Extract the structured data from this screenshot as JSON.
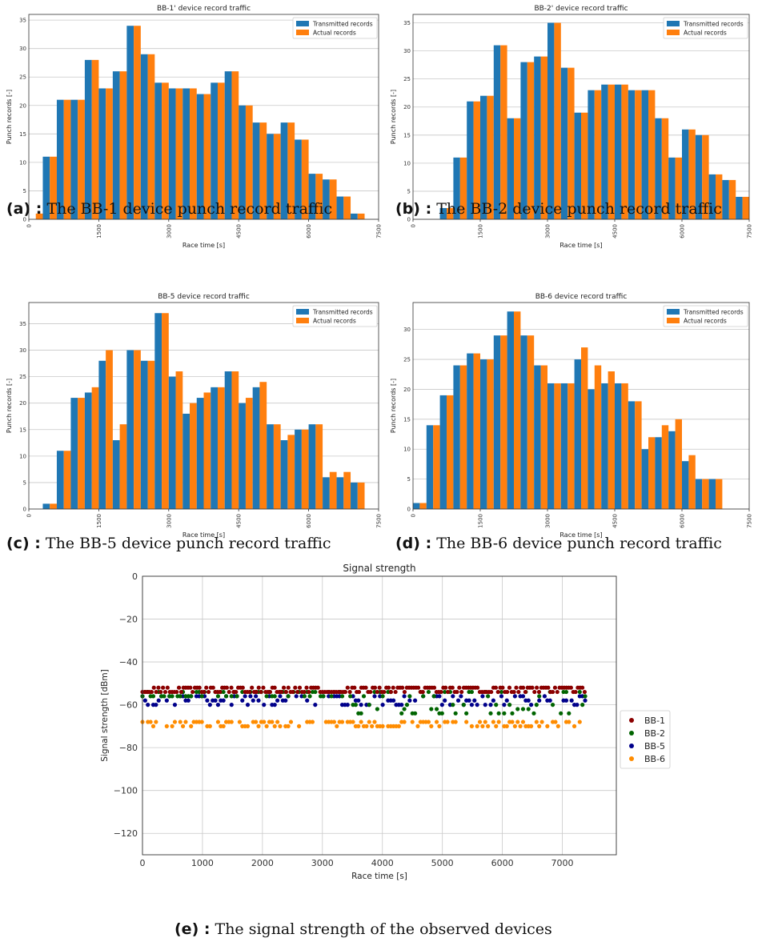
{
  "colors": {
    "transmitted": "#1f77b4",
    "actual": "#ff7f0e",
    "BB-1": "#8b0000",
    "BB-2": "#006400",
    "BB-5": "#00008b",
    "BB-6": "#ff8c00"
  },
  "chart_data": [
    {
      "id": "a",
      "type": "bar",
      "title": "BB-1' device record traffic",
      "xlabel": "Race time [s]",
      "ylabel": "Punch records [-]",
      "xticks": [
        0,
        1500,
        3000,
        4500,
        6000,
        7500
      ],
      "yticks": [
        0,
        5,
        10,
        15,
        20,
        25,
        30,
        35
      ],
      "xlim": [
        0,
        7500
      ],
      "ylim": [
        0,
        36
      ],
      "bin_width": 300,
      "grid": "y",
      "legend": "top-right",
      "bin_starts": [
        0,
        300,
        600,
        900,
        1200,
        1500,
        1800,
        2100,
        2400,
        2700,
        3000,
        3300,
        3600,
        3900,
        4200,
        4500,
        4800,
        5100,
        5400,
        5700,
        6000,
        6300,
        6600,
        6900
      ],
      "series": [
        {
          "name": "Transmitted records",
          "values": [
            0,
            11,
            21,
            21,
            28,
            23,
            26,
            34,
            29,
            24,
            23,
            23,
            22,
            24,
            26,
            20,
            17,
            15,
            17,
            14,
            8,
            7,
            4,
            1
          ]
        },
        {
          "name": "Actual records",
          "values": [
            1,
            11,
            21,
            21,
            28,
            23,
            26,
            34,
            29,
            24,
            23,
            23,
            22,
            24,
            26,
            20,
            17,
            15,
            17,
            14,
            8,
            7,
            4,
            1
          ]
        }
      ]
    },
    {
      "id": "b",
      "type": "bar",
      "title": "BB-2' device record traffic",
      "xlabel": "Race time [s]",
      "ylabel": "Punch records [-]",
      "xticks": [
        0,
        1500,
        3000,
        4500,
        6000,
        7500
      ],
      "yticks": [
        0,
        5,
        10,
        15,
        20,
        25,
        30,
        35
      ],
      "xlim": [
        0,
        7500
      ],
      "ylim": [
        0,
        36.5
      ],
      "bin_width": 300,
      "grid": "y",
      "legend": "top-right",
      "bin_starts": [
        0,
        300,
        600,
        900,
        1200,
        1500,
        1800,
        2100,
        2400,
        2700,
        3000,
        3300,
        3600,
        3900,
        4200,
        4500,
        4800,
        5100,
        5400,
        5700,
        6000,
        6300,
        6600,
        6900,
        7200
      ],
      "series": [
        {
          "name": "Transmitted records",
          "values": [
            0,
            0,
            2,
            11,
            21,
            22,
            31,
            18,
            28,
            29,
            35,
            27,
            19,
            23,
            24,
            24,
            23,
            23,
            18,
            11,
            16,
            15,
            8,
            7,
            4
          ]
        },
        {
          "name": "Actual records",
          "values": [
            0,
            0,
            2,
            11,
            21,
            22,
            31,
            18,
            28,
            29,
            35,
            27,
            19,
            23,
            24,
            24,
            23,
            23,
            18,
            11,
            16,
            15,
            8,
            7,
            4
          ]
        }
      ]
    },
    {
      "id": "c",
      "type": "bar",
      "title": "BB-5 device record traffic",
      "xlabel": "Race time [s]",
      "ylabel": "Punch records [-]",
      "xticks": [
        0,
        1500,
        3000,
        4500,
        6000,
        7500
      ],
      "yticks": [
        0,
        5,
        10,
        15,
        20,
        25,
        30,
        35
      ],
      "xlim": [
        0,
        7500
      ],
      "ylim": [
        0,
        39
      ],
      "bin_width": 300,
      "grid": "y",
      "legend": "top-right",
      "bin_starts": [
        0,
        300,
        600,
        900,
        1200,
        1500,
        1800,
        2100,
        2400,
        2700,
        3000,
        3300,
        3600,
        3900,
        4200,
        4500,
        4800,
        5100,
        5400,
        5700,
        6000,
        6300,
        6600,
        6900
      ],
      "series": [
        {
          "name": "Transmitted records",
          "values": [
            0,
            1,
            11,
            21,
            22,
            28,
            13,
            30,
            28,
            37,
            25,
            18,
            21,
            23,
            26,
            20,
            23,
            16,
            13,
            15,
            16,
            6,
            6,
            5
          ]
        },
        {
          "name": "Actual records",
          "values": [
            0,
            1,
            11,
            21,
            23,
            30,
            16,
            30,
            28,
            37,
            26,
            20,
            22,
            23,
            26,
            21,
            24,
            16,
            14,
            15,
            16,
            7,
            7,
            5
          ]
        }
      ]
    },
    {
      "id": "d",
      "type": "bar",
      "title": "BB-6 device record traffic",
      "xlabel": "Race time [s]",
      "ylabel": "Punch records [-]",
      "xticks": [
        0,
        1500,
        3000,
        4500,
        6000,
        7500
      ],
      "yticks": [
        0,
        5,
        10,
        15,
        20,
        25,
        30
      ],
      "xlim": [
        0,
        7500
      ],
      "ylim": [
        0,
        34.5
      ],
      "bin_width": 300,
      "grid": "y",
      "legend": "top-right",
      "bin_starts": [
        0,
        300,
        600,
        900,
        1200,
        1500,
        1800,
        2100,
        2400,
        2700,
        3000,
        3300,
        3600,
        3900,
        4200,
        4500,
        4800,
        5100,
        5400,
        5700,
        6000,
        6300,
        6600,
        6900
      ],
      "series": [
        {
          "name": "Transmitted records",
          "values": [
            1,
            14,
            19,
            24,
            26,
            25,
            29,
            33,
            29,
            24,
            21,
            21,
            25,
            20,
            21,
            21,
            18,
            10,
            12,
            13,
            8,
            5,
            5,
            0
          ]
        },
        {
          "name": "Actual records",
          "values": [
            1,
            14,
            19,
            24,
            26,
            25,
            29,
            33,
            29,
            24,
            21,
            21,
            27,
            24,
            23,
            21,
            18,
            12,
            14,
            15,
            9,
            5,
            5,
            0
          ]
        }
      ]
    },
    {
      "id": "e",
      "type": "scatter",
      "title": "Signal strength",
      "xlabel": "Race time [s]",
      "ylabel": "Signal strength [dBm]",
      "xticks": [
        0,
        1000,
        2000,
        3000,
        4000,
        5000,
        6000,
        7000
      ],
      "yticks": [
        0,
        -20,
        -40,
        -60,
        -80,
        -100,
        -120
      ],
      "xlim": [
        0,
        7900
      ],
      "ylim": [
        -130,
        0
      ],
      "grid": "both",
      "legend": "outside-right",
      "series": [
        {
          "name": "BB-1",
          "x_range": [
            0,
            7400
          ],
          "y_levels": [
            -52,
            -54
          ]
        },
        {
          "name": "BB-2",
          "x_range": [
            0,
            7400
          ],
          "y_levels": [
            -54,
            -56,
            -60,
            -62,
            -64
          ]
        },
        {
          "name": "BB-5",
          "x_range": [
            0,
            7400
          ],
          "y_levels": [
            -56,
            -58,
            -60
          ]
        },
        {
          "name": "BB-6",
          "x_range": [
            0,
            7400
          ],
          "y_levels": [
            -68,
            -70
          ]
        }
      ]
    }
  ],
  "captions": [
    {
      "id": "a",
      "label": "(a) :",
      "text": "The BB-1 device punch record traffic"
    },
    {
      "id": "b",
      "label": "(b) :",
      "text": "The BB-2 device punch record traffic"
    },
    {
      "id": "c",
      "label": "(c) :",
      "text": "The BB-5 device punch record traffic"
    },
    {
      "id": "d",
      "label": "(d) :",
      "text": "The BB-6 device punch record traffic"
    },
    {
      "id": "e",
      "label": "(e) :",
      "text": "The signal strength of the observed devices"
    }
  ]
}
